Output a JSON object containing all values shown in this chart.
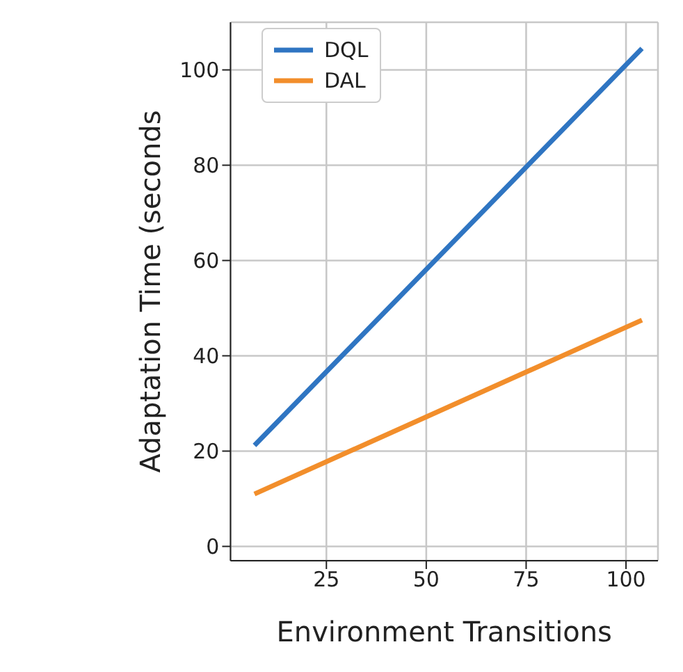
{
  "chart_data": {
    "type": "line",
    "xlabel": "Environment Transitions",
    "ylabel": "Adaptation Time (seconds",
    "xlim": [
      1,
      108
    ],
    "xticks": [
      25,
      50,
      75,
      100
    ],
    "ylim": [
      -3,
      110
    ],
    "yticks": [
      0,
      20,
      40,
      60,
      80,
      100
    ],
    "x": [
      7,
      104
    ],
    "series": [
      {
        "name": "DQL",
        "color": "#2f75c2",
        "values": [
          21.2,
          104.5
        ]
      },
      {
        "name": "DAL",
        "color": "#f28e2b",
        "values": [
          11,
          47.5
        ]
      }
    ],
    "grid": true,
    "legend": "top left",
    "marker": "none",
    "line_style": "solid"
  }
}
